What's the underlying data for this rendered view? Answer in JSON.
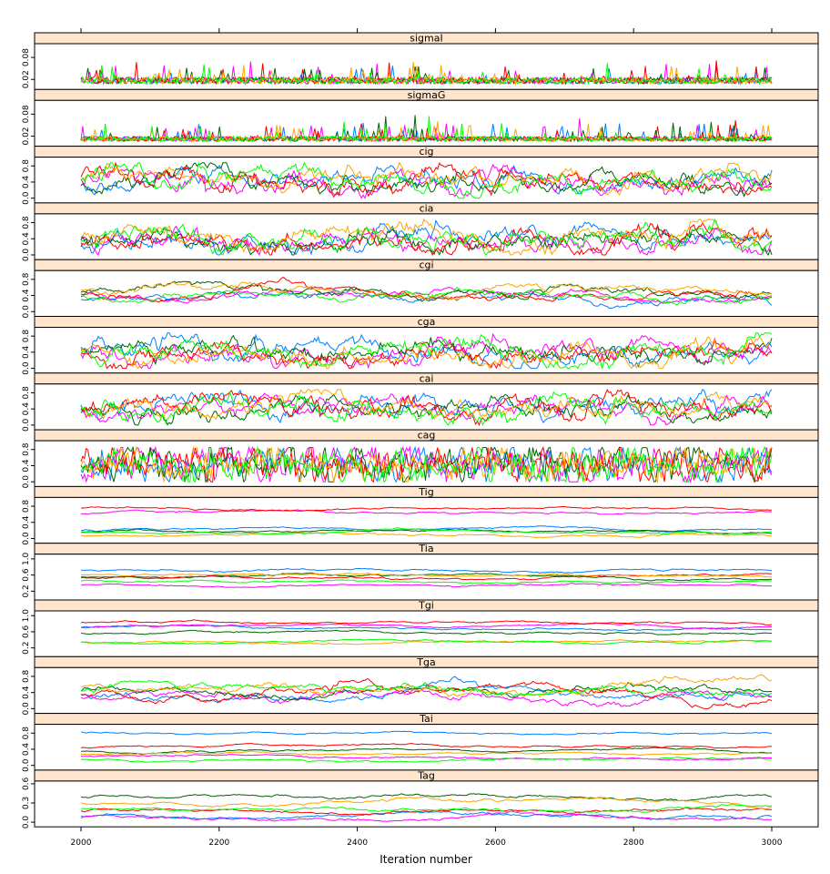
{
  "chart_data": {
    "type": "line",
    "xlabel": "Iteration number",
    "x_ticks": [
      "2000",
      "2200",
      "2400",
      "2600",
      "2800",
      "3000"
    ],
    "x_tick_values": [
      2000,
      2200,
      2400,
      2600,
      2800,
      3000
    ],
    "xlim": [
      2000,
      3000
    ],
    "series_colors": [
      "#0080ff",
      "#ff00ff",
      "#006400",
      "#ff0000",
      "#ffa500",
      "#00ff00"
    ],
    "strip_color": "#ffe5cc",
    "panels": [
      {
        "name": "sigmaI",
        "y_ticks": [
          "0.02",
          "0.08"
        ],
        "tick_values": [
          0.02,
          0.08
        ],
        "ylim": [
          0,
          0.11
        ],
        "kind": "spiky",
        "levels": [
          0.02,
          0.02,
          0.02,
          0.02,
          0.02,
          0.02
        ]
      },
      {
        "name": "sigmaG",
        "y_ticks": [
          "0.02",
          "0.08"
        ],
        "tick_values": [
          0.02,
          0.08
        ],
        "ylim": [
          0,
          0.11
        ],
        "kind": "spiky",
        "levels": [
          0.015,
          0.015,
          0.015,
          0.015,
          0.015,
          0.015
        ]
      },
      {
        "name": "cig",
        "y_ticks": [
          "0.0",
          "0.4",
          "0.8"
        ],
        "tick_values": [
          0.0,
          0.4,
          0.8
        ],
        "ylim": [
          -0.05,
          0.95
        ],
        "kind": "mixing",
        "levels": [
          0.45,
          0.4,
          0.4,
          0.45,
          0.5,
          0.45
        ]
      },
      {
        "name": "cia",
        "y_ticks": [
          "0.0",
          "0.4",
          "0.8"
        ],
        "tick_values": [
          0.0,
          0.4,
          0.8
        ],
        "ylim": [
          -0.05,
          0.95
        ],
        "kind": "mixing",
        "levels": [
          0.35,
          0.35,
          0.35,
          0.4,
          0.4,
          0.35
        ]
      },
      {
        "name": "cgi",
        "y_ticks": [
          "0.0",
          "0.4",
          "0.8"
        ],
        "tick_values": [
          0.0,
          0.4,
          0.8
        ],
        "ylim": [
          -0.05,
          0.95
        ],
        "kind": "slow",
        "levels": [
          0.35,
          0.4,
          0.5,
          0.4,
          0.55,
          0.4
        ]
      },
      {
        "name": "cga",
        "y_ticks": [
          "0.0",
          "0.4",
          "0.8"
        ],
        "tick_values": [
          0.0,
          0.4,
          0.8
        ],
        "ylim": [
          -0.05,
          0.95
        ],
        "kind": "mixing",
        "levels": [
          0.4,
          0.35,
          0.45,
          0.35,
          0.4,
          0.35
        ]
      },
      {
        "name": "cai",
        "y_ticks": [
          "0.0",
          "0.4",
          "0.8"
        ],
        "tick_values": [
          0.0,
          0.4,
          0.8
        ],
        "ylim": [
          -0.05,
          0.95
        ],
        "kind": "mixing",
        "levels": [
          0.45,
          0.45,
          0.4,
          0.45,
          0.45,
          0.4
        ]
      },
      {
        "name": "cag",
        "y_ticks": [
          "0.0",
          "0.4",
          "0.8"
        ],
        "tick_values": [
          0.0,
          0.4,
          0.8
        ],
        "ylim": [
          -0.05,
          0.95
        ],
        "kind": "wild",
        "levels": [
          0.45,
          0.45,
          0.45,
          0.45,
          0.45,
          0.45
        ]
      },
      {
        "name": "Tig",
        "y_ticks": [
          "0.0",
          "0.4",
          "0.8"
        ],
        "tick_values": [
          0.0,
          0.4,
          0.8
        ],
        "ylim": [
          -0.05,
          0.95
        ],
        "kind": "flat",
        "levels": [
          0.22,
          0.62,
          0.18,
          0.74,
          0.08,
          0.15
        ]
      },
      {
        "name": "Tia",
        "y_ticks": [
          "0.2",
          "0.6",
          "1.0"
        ],
        "tick_values": [
          0.2,
          0.6,
          1.0
        ],
        "ylim": [
          0.05,
          1.05
        ],
        "kind": "flat",
        "levels": [
          0.72,
          0.35,
          0.55,
          0.55,
          0.6,
          0.45
        ]
      },
      {
        "name": "Tgi",
        "y_ticks": [
          "0.2",
          "0.6",
          "1.0"
        ],
        "tick_values": [
          0.2,
          0.6,
          1.0
        ],
        "ylim": [
          0.05,
          1.05
        ],
        "kind": "flat",
        "levels": [
          0.72,
          0.72,
          0.55,
          0.82,
          0.35,
          0.35
        ]
      },
      {
        "name": "Tga",
        "y_ticks": [
          "0.0",
          "0.4",
          "0.8"
        ],
        "tick_values": [
          0.0,
          0.4,
          0.8
        ],
        "ylim": [
          -0.05,
          0.95
        ],
        "kind": "slow",
        "levels": [
          0.35,
          0.3,
          0.45,
          0.35,
          0.55,
          0.45
        ]
      },
      {
        "name": "Tai",
        "y_ticks": [
          "0.0",
          "0.4",
          "0.8"
        ],
        "tick_values": [
          0.0,
          0.4,
          0.8
        ],
        "ylim": [
          -0.05,
          0.95
        ],
        "kind": "flat",
        "levels": [
          0.82,
          0.22,
          0.35,
          0.45,
          0.28,
          0.15
        ]
      },
      {
        "name": "Tag",
        "y_ticks": [
          "0.0",
          "0.3",
          "0.6"
        ],
        "tick_values": [
          0.0,
          0.3,
          0.6
        ],
        "ylim": [
          -0.03,
          0.6
        ],
        "kind": "flat",
        "levels": [
          0.1,
          0.06,
          0.4,
          0.18,
          0.3,
          0.22
        ]
      }
    ]
  }
}
